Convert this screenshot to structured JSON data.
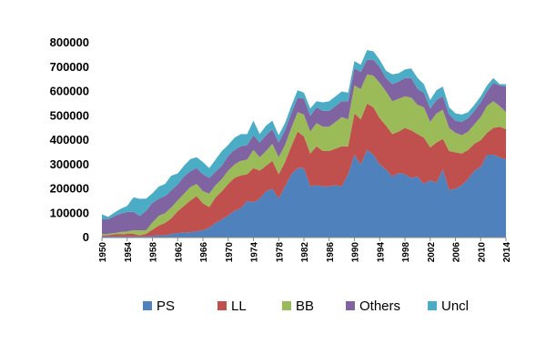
{
  "chart_data": {
    "type": "area",
    "stacked": true,
    "title": "",
    "xlabel": "",
    "ylabel": "",
    "ylim": [
      0,
      800000
    ],
    "yticks": [
      "0",
      "100000",
      "200000",
      "300000",
      "400000",
      "500000",
      "600000",
      "700000",
      "800000"
    ],
    "x": [
      1950,
      1951,
      1952,
      1953,
      1954,
      1955,
      1956,
      1957,
      1958,
      1959,
      1960,
      1961,
      1962,
      1963,
      1964,
      1965,
      1966,
      1967,
      1968,
      1969,
      1970,
      1971,
      1972,
      1973,
      1974,
      1975,
      1976,
      1977,
      1978,
      1979,
      1980,
      1981,
      1982,
      1983,
      1984,
      1985,
      1986,
      1987,
      1988,
      1989,
      1990,
      1991,
      1992,
      1993,
      1994,
      1995,
      1996,
      1997,
      1998,
      1999,
      2000,
      2001,
      2002,
      2003,
      2004,
      2005,
      2006,
      2007,
      2008,
      2009,
      2010,
      2011,
      2012,
      2013,
      2014
    ],
    "xticks": [
      "1950",
      "1954",
      "1958",
      "1962",
      "1966",
      "1970",
      "1974",
      "1978",
      "1982",
      "1986",
      "1990",
      "1994",
      "1998",
      "2002",
      "2006",
      "2010",
      "2014"
    ],
    "legend_position": "bottom",
    "series": [
      {
        "name": "PS",
        "color": "#4f81bd",
        "values": [
          5000,
          5000,
          5000,
          5000,
          5000,
          5000,
          4000,
          5000,
          7000,
          9000,
          10000,
          14000,
          18000,
          20000,
          22000,
          25000,
          30000,
          40000,
          60000,
          75000,
          90000,
          110000,
          120000,
          150000,
          145000,
          160000,
          190000,
          200000,
          160000,
          210000,
          260000,
          285000,
          285000,
          210000,
          215000,
          210000,
          210000,
          215000,
          210000,
          260000,
          340000,
          300000,
          360000,
          340000,
          300000,
          280000,
          250000,
          265000,
          260000,
          245000,
          250000,
          220000,
          235000,
          225000,
          280000,
          195000,
          200000,
          215000,
          240000,
          275000,
          290000,
          340000,
          340000,
          330000,
          320000
        ]
      },
      {
        "name": "LL",
        "color": "#c0504d",
        "values": [
          5000,
          5000,
          8000,
          8000,
          10000,
          10000,
          5000,
          10000,
          25000,
          40000,
          50000,
          65000,
          90000,
          110000,
          130000,
          145000,
          110000,
          85000,
          105000,
          115000,
          130000,
          135000,
          135000,
          110000,
          140000,
          115000,
          105000,
          115000,
          100000,
          100000,
          115000,
          150000,
          130000,
          135000,
          160000,
          145000,
          145000,
          150000,
          165000,
          115000,
          170000,
          185000,
          190000,
          195000,
          190000,
          180000,
          175000,
          170000,
          190000,
          195000,
          175000,
          190000,
          135000,
          165000,
          125000,
          160000,
          150000,
          130000,
          120000,
          110000,
          110000,
          90000,
          110000,
          125000,
          125000
        ]
      },
      {
        "name": "BB",
        "color": "#9bbb59",
        "values": [
          5000,
          5000,
          5000,
          10000,
          10000,
          15000,
          20000,
          15000,
          30000,
          40000,
          40000,
          45000,
          45000,
          50000,
          55000,
          50000,
          50000,
          55000,
          50000,
          50000,
          55000,
          55000,
          60000,
          60000,
          75000,
          55000,
          60000,
          70000,
          70000,
          70000,
          75000,
          80000,
          90000,
          90000,
          95000,
          100000,
          100000,
          110000,
          120000,
          110000,
          115000,
          125000,
          120000,
          130000,
          145000,
          140000,
          135000,
          135000,
          130000,
          135000,
          120000,
          125000,
          105000,
          120000,
          120000,
          95000,
          80000,
          75000,
          75000,
          80000,
          95000,
          110000,
          110000,
          85000,
          70000
        ]
      },
      {
        "name": "Others",
        "color": "#8064a2",
        "values": [
          60000,
          60000,
          70000,
          75000,
          80000,
          75000,
          60000,
          80000,
          80000,
          70000,
          70000,
          70000,
          65000,
          70000,
          65000,
          65000,
          70000,
          65000,
          55000,
          55000,
          60000,
          60000,
          60000,
          60000,
          60000,
          60000,
          65000,
          60000,
          60000,
          60000,
          60000,
          60000,
          65000,
          65000,
          65000,
          65000,
          65000,
          65000,
          65000,
          75000,
          70000,
          70000,
          60000,
          65000,
          65000,
          55000,
          70000,
          70000,
          75000,
          80000,
          65000,
          60000,
          55000,
          55000,
          55000,
          55000,
          50000,
          55000,
          55000,
          55000,
          60000,
          60000,
          75000,
          85000,
          105000
        ]
      },
      {
        "name": "Uncl",
        "color": "#4bacc6",
        "values": [
          20000,
          10000,
          15000,
          20000,
          25000,
          60000,
          70000,
          50000,
          40000,
          50000,
          50000,
          60000,
          45000,
          45000,
          50000,
          45000,
          50000,
          40000,
          50000,
          60000,
          45000,
          50000,
          50000,
          45000,
          60000,
          35000,
          40000,
          35000,
          30000,
          30000,
          30000,
          30000,
          25000,
          30000,
          25000,
          35000,
          40000,
          40000,
          40000,
          35000,
          30000,
          30000,
          40000,
          35000,
          30000,
          30000,
          40000,
          35000,
          35000,
          40000,
          45000,
          35000,
          35000,
          40000,
          40000,
          30000,
          30000,
          30000,
          25000,
          25000,
          25000,
          25000,
          20000,
          5000,
          10000
        ]
      }
    ]
  }
}
